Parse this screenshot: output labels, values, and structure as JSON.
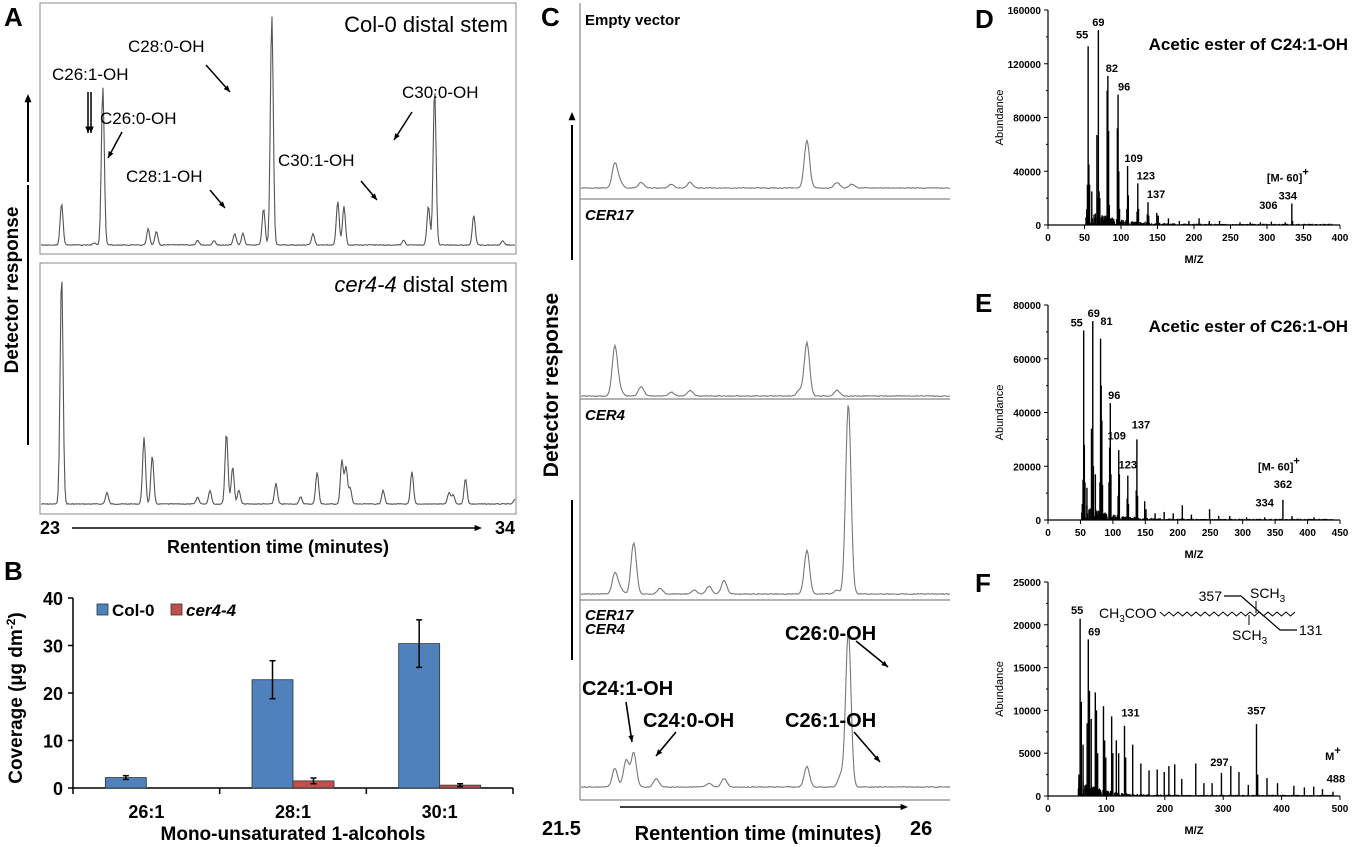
{
  "panels": {
    "A": {
      "letter": "A"
    },
    "B": {
      "letter": "B"
    },
    "C": {
      "letter": "C"
    },
    "D": {
      "letter": "D"
    },
    "E": {
      "letter": "E"
    },
    "F": {
      "letter": "F"
    }
  },
  "chart_data": [
    {
      "id": "A",
      "type": "line",
      "title_top": "Col-0 distal stem",
      "title_bottom_italic": "cer4-4",
      "title_bottom_rest": " distal stem",
      "ylabel": "Detector response",
      "xlabel": "Rentention time (minutes)",
      "xlim": [
        23,
        34
      ],
      "x_tick_labels": [
        "23",
        "34"
      ],
      "annotations_top": [
        "C26:1-OH",
        "C26:0-OH",
        "C28:0-OH",
        "C28:1-OH",
        "C30:1-OH",
        "C30:0-OH"
      ],
      "peaks_top": [
        [
          23.5,
          0.18
        ],
        [
          24.3,
          0.01
        ],
        [
          24.5,
          0.69
        ],
        [
          25.6,
          0.07
        ],
        [
          25.8,
          0.06
        ],
        [
          26.8,
          0.02
        ],
        [
          27.2,
          0.02
        ],
        [
          27.7,
          0.05
        ],
        [
          27.9,
          0.05
        ],
        [
          28.4,
          0.16
        ],
        [
          28.6,
          1.0
        ],
        [
          29.6,
          0.05
        ],
        [
          30.2,
          0.19
        ],
        [
          30.35,
          0.17
        ],
        [
          31.8,
          0.02
        ],
        [
          32.4,
          0.17
        ],
        [
          32.55,
          0.68
        ],
        [
          33.5,
          0.13
        ],
        [
          34.2,
          0.02
        ]
      ],
      "peaks_bottom": [
        [
          23.5,
          1.0
        ],
        [
          24.6,
          0.05
        ],
        [
          25.5,
          0.29
        ],
        [
          25.7,
          0.21
        ],
        [
          26.8,
          0.03
        ],
        [
          27.1,
          0.06
        ],
        [
          27.5,
          0.31
        ],
        [
          27.65,
          0.16
        ],
        [
          27.8,
          0.06
        ],
        [
          28.7,
          0.09
        ],
        [
          29.3,
          0.03
        ],
        [
          29.7,
          0.14
        ],
        [
          30.3,
          0.19
        ],
        [
          30.4,
          0.16
        ],
        [
          30.5,
          0.07
        ],
        [
          31.3,
          0.06
        ],
        [
          32.0,
          0.14
        ],
        [
          32.9,
          0.05
        ],
        [
          33.0,
          0.04
        ],
        [
          33.3,
          0.11
        ],
        [
          34.5,
          0.02
        ]
      ]
    },
    {
      "id": "B",
      "type": "bar",
      "title": "",
      "xlabel": "Mono-unsaturated 1-alcohols",
      "ylabel": "Coverage (µg dm",
      "ylabel_sup": "-2",
      "ylabel_close": ")",
      "ylim": [
        0,
        40
      ],
      "y_ticks": [
        0,
        10,
        20,
        30,
        40
      ],
      "categories": [
        "26:1",
        "28:1",
        "30:1"
      ],
      "legend_position": "top-left",
      "series": [
        {
          "name": "Col-0",
          "italic": false,
          "color": "#4f81bd",
          "values": [
            2.2,
            22.8,
            30.4
          ],
          "errors": [
            0.4,
            4.0,
            5.0
          ]
        },
        {
          "name": "cer4-4",
          "italic": true,
          "color": "#c0504d",
          "values": [
            0,
            1.5,
            0.6
          ],
          "errors": [
            0,
            0.6,
            0.3
          ]
        }
      ]
    },
    {
      "id": "C",
      "type": "line",
      "ylabel": "Detector response",
      "xlabel": "Rentention time (minutes)",
      "xlim": [
        21.5,
        26
      ],
      "x_tick_labels": [
        "21.5",
        "26"
      ],
      "traces": [
        {
          "label": "Empty vector",
          "italic": false,
          "peaks": [
            [
              21.95,
              0.13
            ],
            [
              22.02,
              0.03
            ],
            [
              22.3,
              0.03
            ],
            [
              22.7,
              0.02
            ],
            [
              22.95,
              0.03
            ],
            [
              24.5,
              0.25
            ],
            [
              24.9,
              0.03
            ],
            [
              25.1,
              0.02
            ]
          ]
        },
        {
          "label": "CER17",
          "italic": true,
          "peaks": [
            [
              21.95,
              0.26
            ],
            [
              22.02,
              0.03
            ],
            [
              22.3,
              0.05
            ],
            [
              22.7,
              0.02
            ],
            [
              22.95,
              0.03
            ],
            [
              24.4,
              0.03
            ],
            [
              24.5,
              0.28
            ],
            [
              24.9,
              0.03
            ]
          ]
        },
        {
          "label": "CER4",
          "italic": true,
          "peaks": [
            [
              21.95,
              0.11
            ],
            [
              22.02,
              0.03
            ],
            [
              22.2,
              0.27
            ],
            [
              22.55,
              0.03
            ],
            [
              23.0,
              0.02
            ],
            [
              23.2,
              0.04
            ],
            [
              23.4,
              0.07
            ],
            [
              24.5,
              0.23
            ],
            [
              24.9,
              0.02
            ],
            [
              25.05,
              1.0
            ]
          ]
        },
        {
          "label_lines": [
            "CER17",
            "CER4"
          ],
          "italic": true,
          "peaks": [
            [
              21.95,
              0.11
            ],
            [
              22.1,
              0.16
            ],
            [
              22.2,
              0.2
            ],
            [
              22.5,
              0.05
            ],
            [
              23.2,
              0.02
            ],
            [
              23.4,
              0.05
            ],
            [
              24.5,
              0.12
            ],
            [
              24.95,
              0.07
            ],
            [
              25.05,
              0.92
            ]
          ],
          "annotations": [
            "C24:1-OH",
            "C24:0-OH",
            "C26:0-OH",
            "C26:1-OH"
          ]
        }
      ]
    },
    {
      "id": "D",
      "type": "bar",
      "title": "Acetic ester of C24:1-OH",
      "xlabel": "M/Z",
      "ylabel": "Abundance",
      "xlim": [
        0,
        400
      ],
      "ylim": [
        0,
        160000
      ],
      "x_ticks": [
        0,
        50,
        100,
        150,
        200,
        250,
        300,
        350,
        400
      ],
      "y_ticks": [
        0,
        40000,
        80000,
        120000,
        160000
      ],
      "peaks": [
        [
          53,
          10000
        ],
        [
          54,
          30000
        ],
        [
          55,
          133000
        ],
        [
          56,
          45000
        ],
        [
          57,
          30000
        ],
        [
          60,
          25000
        ],
        [
          67,
          67000
        ],
        [
          68,
          20000
        ],
        [
          69,
          145000
        ],
        [
          70,
          25000
        ],
        [
          71,
          20000
        ],
        [
          81,
          100000
        ],
        [
          82,
          111000
        ],
        [
          83,
          70000
        ],
        [
          84,
          15000
        ],
        [
          95,
          72000
        ],
        [
          96,
          97000
        ],
        [
          97,
          40000
        ],
        [
          98,
          12000
        ],
        [
          108,
          12000
        ],
        [
          109,
          44000
        ],
        [
          110,
          22000
        ],
        [
          122,
          10000
        ],
        [
          123,
          31000
        ],
        [
          124,
          12000
        ],
        [
          136,
          8000
        ],
        [
          137,
          17000
        ],
        [
          138,
          7000
        ],
        [
          149,
          9000
        ],
        [
          151,
          7000
        ],
        [
          165,
          5000
        ],
        [
          180,
          3000
        ],
        [
          193,
          3000
        ],
        [
          207,
          5000
        ],
        [
          221,
          3000
        ],
        [
          235,
          3000
        ],
        [
          263,
          2000
        ],
        [
          277,
          2000
        ],
        [
          291,
          2000
        ],
        [
          306,
          2500
        ],
        [
          325,
          2000
        ],
        [
          334,
          16000
        ],
        [
          335,
          3000
        ]
      ],
      "peak_labels": [
        {
          "x": 55,
          "label": "55"
        },
        {
          "x": 69,
          "label": "69"
        },
        {
          "x": 82,
          "label": "82"
        },
        {
          "x": 96,
          "label": "96"
        },
        {
          "x": 109,
          "label": "109"
        },
        {
          "x": 123,
          "label": "123"
        },
        {
          "x": 137,
          "label": "137"
        },
        {
          "x": 306,
          "label": "306"
        },
        {
          "x": 334,
          "label": "334"
        }
      ],
      "ion_annotation": {
        "text": "[M- 60]",
        "sup": "+"
      }
    },
    {
      "id": "E",
      "type": "bar",
      "title": "Acetic ester of C26:1-OH",
      "xlabel": "M/Z",
      "ylabel": "Abundance",
      "xlim": [
        0,
        450
      ],
      "ylim": [
        0,
        80000
      ],
      "x_ticks": [
        0,
        50,
        100,
        150,
        200,
        250,
        300,
        350,
        400,
        450
      ],
      "y_ticks": [
        0,
        20000,
        40000,
        60000,
        80000
      ],
      "peaks": [
        [
          53,
          6000
        ],
        [
          54,
          15000
        ],
        [
          55,
          70500
        ],
        [
          56,
          28000
        ],
        [
          57,
          14000
        ],
        [
          60,
          12000
        ],
        [
          67,
          34000
        ],
        [
          68,
          14000
        ],
        [
          69,
          74000
        ],
        [
          70,
          20000
        ],
        [
          73,
          17000
        ],
        [
          80,
          14000
        ],
        [
          81,
          67500
        ],
        [
          82,
          50000
        ],
        [
          83,
          37000
        ],
        [
          84,
          13000
        ],
        [
          94,
          14000
        ],
        [
          95,
          27000
        ],
        [
          96,
          43500
        ],
        [
          97,
          17000
        ],
        [
          108,
          9000
        ],
        [
          109,
          26000
        ],
        [
          110,
          17000
        ],
        [
          122,
          8000
        ],
        [
          123,
          16500
        ],
        [
          124,
          6000
        ],
        [
          136,
          11000
        ],
        [
          137,
          30000
        ],
        [
          138,
          9000
        ],
        [
          149,
          7000
        ],
        [
          151,
          4000
        ],
        [
          165,
          2500
        ],
        [
          179,
          3000
        ],
        [
          193,
          2500
        ],
        [
          207,
          5500
        ],
        [
          221,
          2000
        ],
        [
          249,
          4000
        ],
        [
          263,
          1500
        ],
        [
          280,
          1500
        ],
        [
          306,
          1000
        ],
        [
          334,
          1000
        ],
        [
          362,
          7500
        ],
        [
          376,
          1500
        ],
        [
          410,
          1000
        ]
      ],
      "peak_labels": [
        {
          "x": 55,
          "label": "55"
        },
        {
          "x": 69,
          "label": "69"
        },
        {
          "x": 81,
          "label": "81"
        },
        {
          "x": 96,
          "label": "96"
        },
        {
          "x": 109,
          "label": "109"
        },
        {
          "x": 123,
          "label": "123"
        },
        {
          "x": 137,
          "label": "137"
        },
        {
          "x": 334,
          "label": "334"
        },
        {
          "x": 362,
          "label": "362"
        }
      ],
      "ion_annotation": {
        "text": "[M- 60]",
        "sup": "+"
      }
    },
    {
      "id": "F",
      "type": "bar",
      "title": "",
      "xlabel": "M/Z",
      "ylabel": "Abundance",
      "xlim": [
        0,
        500
      ],
      "ylim": [
        0,
        25000
      ],
      "x_ticks": [
        0,
        100,
        200,
        300,
        400,
        500
      ],
      "y_ticks": [
        0,
        5000,
        10000,
        15000,
        20000,
        25000
      ],
      "peaks": [
        [
          53,
          2500
        ],
        [
          55,
          20700
        ],
        [
          57,
          11000
        ],
        [
          60,
          6000
        ],
        [
          67,
          8500
        ],
        [
          69,
          18300
        ],
        [
          71,
          12300
        ],
        [
          74,
          9000
        ],
        [
          81,
          12100
        ],
        [
          83,
          10000
        ],
        [
          85,
          5000
        ],
        [
          95,
          10500
        ],
        [
          97,
          6500
        ],
        [
          99,
          4500
        ],
        [
          109,
          9300
        ],
        [
          111,
          5000
        ],
        [
          117,
          6500
        ],
        [
          121,
          5000
        ],
        [
          131,
          8200
        ],
        [
          133,
          4500
        ],
        [
          145,
          6000
        ],
        [
          159,
          3800
        ],
        [
          173,
          3000
        ],
        [
          187,
          3100
        ],
        [
          199,
          2800
        ],
        [
          207,
          3500
        ],
        [
          217,
          3700
        ],
        [
          229,
          2000
        ],
        [
          253,
          3800
        ],
        [
          267,
          1500
        ],
        [
          281,
          1500
        ],
        [
          297,
          2700
        ],
        [
          313,
          3500
        ],
        [
          327,
          2800
        ],
        [
          343,
          1300
        ],
        [
          357,
          8400
        ],
        [
          359,
          2500
        ],
        [
          375,
          2100
        ],
        [
          393,
          1500
        ],
        [
          421,
          1200
        ],
        [
          439,
          1000
        ],
        [
          455,
          1100
        ],
        [
          470,
          800
        ],
        [
          488,
          500
        ]
      ],
      "peak_labels": [
        {
          "x": 55,
          "label": "55"
        },
        {
          "x": 69,
          "label": "69"
        },
        {
          "x": 131,
          "label": "131"
        },
        {
          "x": 297,
          "label": "297"
        },
        {
          "x": 357,
          "label": "357"
        },
        {
          "x": 488,
          "label": "488"
        }
      ],
      "ion_annotation": {
        "text": "M",
        "sup": "+"
      },
      "structure": {
        "prefix": "CH",
        "prefix_sub": "3",
        "prefix_rest": "COO",
        "sub_top": "SCH",
        "sub_top_sub": "3",
        "sub_bottom": "SCH",
        "sub_bottom_sub": "3",
        "frag_left": "357",
        "frag_right": "131"
      }
    }
  ]
}
